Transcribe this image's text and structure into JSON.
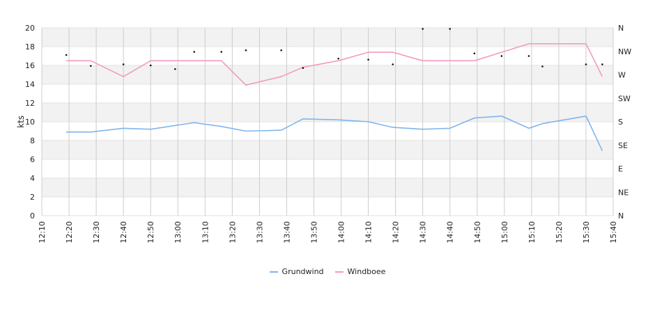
{
  "chart_data": {
    "type": "line",
    "ylabel": "kts",
    "ylim": [
      0,
      20
    ],
    "y_ticks": [
      "0",
      "2",
      "4",
      "6",
      "8",
      "10",
      "12",
      "14",
      "16",
      "18",
      "20"
    ],
    "y2_ticks": [
      "N",
      "NE",
      "E",
      "SE",
      "S",
      "SW",
      "W",
      "NW",
      "N"
    ],
    "x_ticks": [
      "12:10",
      "12:20",
      "12:30",
      "12:40",
      "12:50",
      "13:00",
      "13:10",
      "13:20",
      "13:30",
      "13:40",
      "13:50",
      "14:00",
      "14:10",
      "14:20",
      "14:30",
      "14:40",
      "14:50",
      "15:00",
      "15:10",
      "15:20",
      "15:30",
      "15:40"
    ],
    "x_range": [
      "12:10",
      "15:40"
    ],
    "grid": true,
    "legend_position": "bottom",
    "series": [
      {
        "name": "Grundwind",
        "color": "#7fb5ec",
        "x": [
          "12:19",
          "12:28",
          "12:40",
          "12:50",
          "12:59",
          "13:06",
          "13:16",
          "13:25",
          "13:38",
          "13:46",
          "13:59",
          "14:10",
          "14:19",
          "14:30",
          "14:40",
          "14:49",
          "14:59",
          "15:09",
          "15:14",
          "15:20",
          "15:30",
          "15:36"
        ],
        "values": [
          8.9,
          8.9,
          9.3,
          9.2,
          9.6,
          9.9,
          9.5,
          9.0,
          9.1,
          10.3,
          10.2,
          10.0,
          9.4,
          9.2,
          9.3,
          10.4,
          10.6,
          9.3,
          9.8,
          10.1,
          10.6,
          6.9
        ]
      },
      {
        "name": "Windboee",
        "color": "#f29ac0",
        "x": [
          "12:19",
          "12:28",
          "12:40",
          "12:50",
          "12:59",
          "13:06",
          "13:16",
          "13:25",
          "13:38",
          "13:46",
          "13:59",
          "14:10",
          "14:19",
          "14:30",
          "14:40",
          "14:49",
          "14:59",
          "15:09",
          "15:14",
          "15:20",
          "15:30",
          "15:36"
        ],
        "values": [
          16.5,
          16.5,
          14.8,
          16.5,
          16.5,
          16.5,
          16.5,
          13.9,
          14.8,
          15.8,
          16.5,
          17.4,
          17.4,
          16.5,
          16.5,
          16.5,
          17.4,
          18.3,
          18.3,
          18.3,
          18.3,
          14.8
        ]
      }
    ],
    "direction_points": {
      "x": [
        "12:19",
        "12:28",
        "12:40",
        "12:50",
        "12:59",
        "13:06",
        "13:16",
        "13:25",
        "13:38",
        "13:46",
        "13:59",
        "14:10",
        "14:19",
        "14:30",
        "14:40",
        "14:49",
        "14:59",
        "15:09",
        "15:14",
        "15:30",
        "15:36"
      ],
      "direction_deg": [
        308,
        287,
        290,
        288,
        281,
        314,
        314,
        317,
        317,
        283,
        301,
        299,
        290,
        358,
        358,
        311,
        306,
        306,
        286,
        290,
        290
      ]
    }
  }
}
